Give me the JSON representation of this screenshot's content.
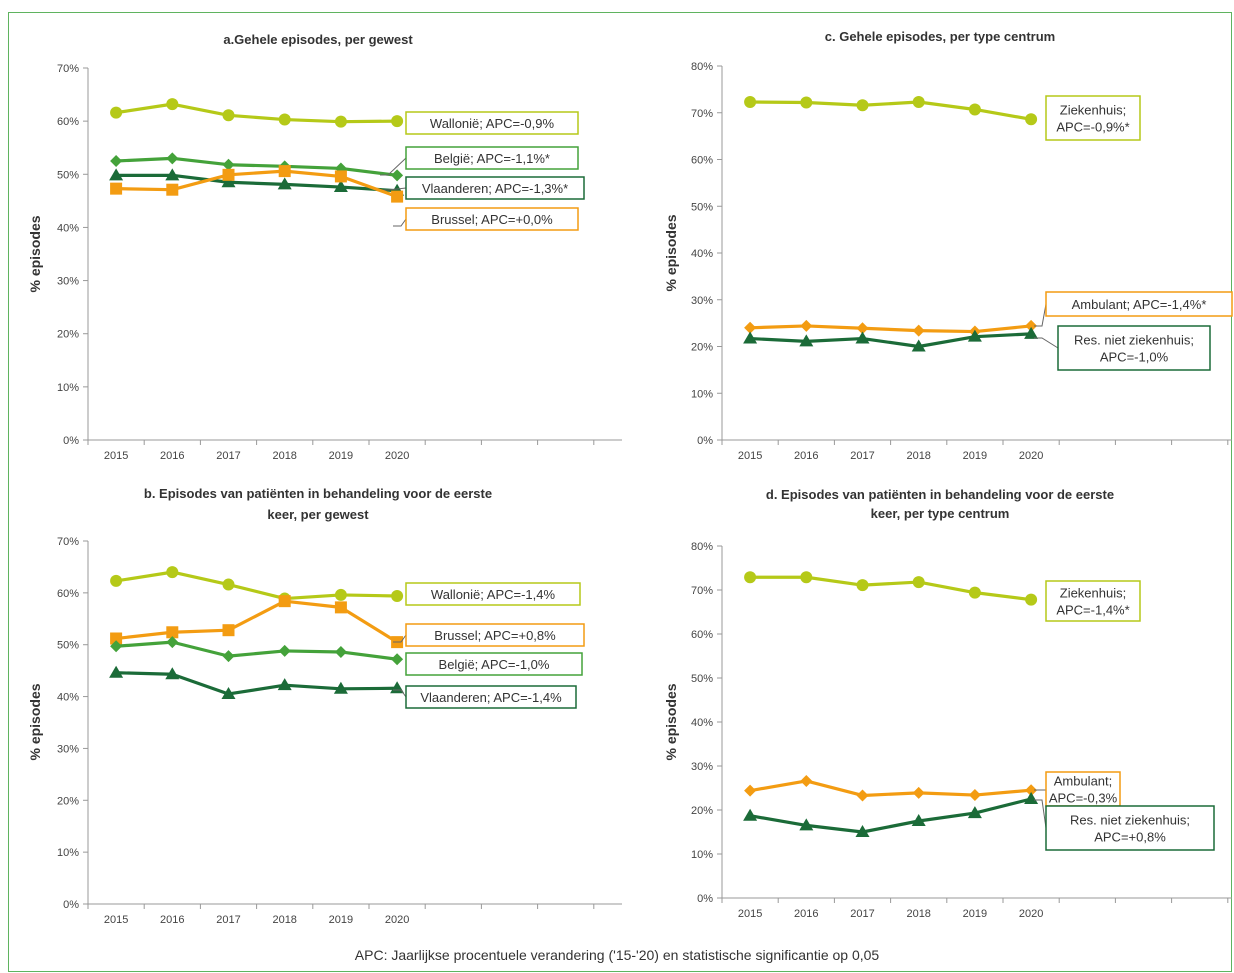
{
  "footnote": "APC: Jaarlijkse procentuele verandering ('15-'20) en statistische significantie op 0,05",
  "colors": {
    "wallonie": "#b5c918",
    "belgie": "#44a23a",
    "vlaanderen": "#1b6b38",
    "brussel": "#f39c12",
    "ziekenhuis": "#b5c918",
    "ambulant": "#f39c12",
    "residentieel": "#1b6b38"
  },
  "chart_data": [
    {
      "id": "a",
      "type": "line",
      "title": [
        "a.Gehele episodes, per gewest"
      ],
      "ylabel": "% episodes",
      "x": [
        "2015",
        "2016",
        "2017",
        "2018",
        "2019",
        "2020"
      ],
      "ylim": [
        0,
        70
      ],
      "yticks": [
        "0%",
        "10%",
        "20%",
        "30%",
        "40%",
        "50%",
        "60%",
        "70%"
      ],
      "series": [
        {
          "name": "Wallonië; APC=-0,9%",
          "marker": "circle",
          "values": [
            61.6,
            63.2,
            61.1,
            60.3,
            59.9,
            60.0
          ]
        },
        {
          "name": "België; APC=-1,1%*",
          "marker": "diamond",
          "values": [
            52.5,
            53.0,
            51.8,
            51.5,
            51.1,
            49.8
          ]
        },
        {
          "name": "Vlaanderen; APC=-1,3%*",
          "marker": "triangle",
          "values": [
            49.8,
            49.8,
            48.5,
            48.1,
            47.6,
            46.9
          ]
        },
        {
          "name": "Brussel; APC=+0,0%",
          "marker": "square",
          "values": [
            47.3,
            47.1,
            49.9,
            50.6,
            49.6,
            45.8
          ]
        }
      ]
    },
    {
      "id": "c",
      "type": "line",
      "title": [
        "c. Gehele episodes, per type centrum"
      ],
      "ylabel": "% episodes",
      "x": [
        "2015",
        "2016",
        "2017",
        "2018",
        "2019",
        "2020"
      ],
      "ylim": [
        0,
        80
      ],
      "yticks": [
        "0%",
        "10%",
        "20%",
        "30%",
        "40%",
        "50%",
        "60%",
        "70%",
        "80%"
      ],
      "series": [
        {
          "name": [
            "Ziekenhuis;",
            "APC=-0,9%*"
          ],
          "marker": "circle",
          "values": [
            72.3,
            72.2,
            71.6,
            72.3,
            70.7,
            68.6
          ]
        },
        {
          "name": [
            "Ambulant; APC=-1,4%*"
          ],
          "marker": "diamond",
          "values": [
            24.0,
            24.4,
            23.9,
            23.4,
            23.2,
            24.4
          ]
        },
        {
          "name": [
            "Res. niet ziekenhuis;",
            "APC=-1,0%"
          ],
          "marker": "triangle",
          "values": [
            21.7,
            21.1,
            21.7,
            20.0,
            22.1,
            22.7
          ]
        }
      ]
    },
    {
      "id": "b",
      "type": "line",
      "title": [
        "b. Episodes van patiënten in behandeling voor de eerste",
        "keer, per gewest"
      ],
      "ylabel": "% episodes",
      "x": [
        "2015",
        "2016",
        "2017",
        "2018",
        "2019",
        "2020"
      ],
      "ylim": [
        0,
        70
      ],
      "yticks": [
        "0%",
        "10%",
        "20%",
        "30%",
        "40%",
        "50%",
        "60%",
        "70%"
      ],
      "series": [
        {
          "name": "Wallonië; APC=-1,4%",
          "marker": "circle",
          "values": [
            62.3,
            64.0,
            61.6,
            58.9,
            59.6,
            59.4
          ]
        },
        {
          "name": "Brussel; APC=+0,8%",
          "marker": "square",
          "values": [
            51.2,
            52.4,
            52.8,
            58.4,
            57.2,
            50.5
          ]
        },
        {
          "name": "België; APC=-1,0%",
          "marker": "diamond",
          "values": [
            49.7,
            50.5,
            47.8,
            48.8,
            48.6,
            47.2
          ]
        },
        {
          "name": "Vlaanderen; APC=-1,4%",
          "marker": "triangle",
          "values": [
            44.6,
            44.3,
            40.5,
            42.2,
            41.5,
            41.6
          ]
        }
      ]
    },
    {
      "id": "d",
      "type": "line",
      "title": [
        "d. Episodes van patiënten in behandeling voor de eerste",
        "keer, per type centrum"
      ],
      "ylabel": "% episodes",
      "x": [
        "2015",
        "2016",
        "2017",
        "2018",
        "2019",
        "2020"
      ],
      "ylim": [
        0,
        80
      ],
      "yticks": [
        "0%",
        "10%",
        "20%",
        "30%",
        "40%",
        "50%",
        "60%",
        "70%",
        "80%"
      ],
      "series": [
        {
          "name": [
            "Ziekenhuis;",
            "APC=-1,4%*"
          ],
          "marker": "circle",
          "values": [
            72.9,
            72.9,
            71.1,
            71.8,
            69.4,
            67.8
          ]
        },
        {
          "name": [
            "Ambulant;",
            "APC=-0,3%"
          ],
          "marker": "diamond",
          "values": [
            24.4,
            26.6,
            23.3,
            23.9,
            23.4,
            24.5
          ]
        },
        {
          "name": [
            "Res. niet ziekenhuis;",
            "APC=+0,8%"
          ],
          "marker": "triangle",
          "values": [
            18.7,
            16.5,
            15.0,
            17.5,
            19.3,
            22.5
          ]
        }
      ]
    }
  ]
}
